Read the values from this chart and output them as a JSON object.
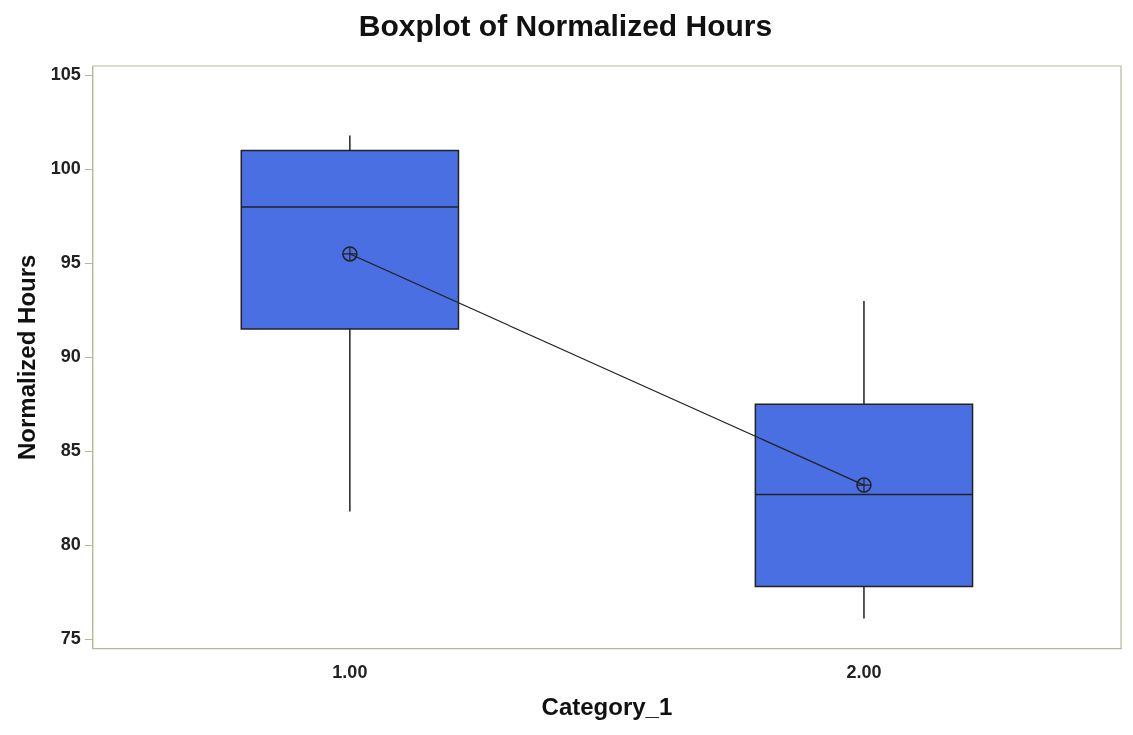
{
  "chart_data": {
    "type": "box",
    "title": "Boxplot of Normalized Hours",
    "xlabel": "Category_1",
    "ylabel": "Normalized Hours",
    "categories": [
      "1.00",
      "2.00"
    ],
    "ylim": [
      74.5,
      105.5
    ],
    "yticks": [
      75,
      80,
      85,
      90,
      95,
      100,
      105
    ],
    "grid": false,
    "legend": false,
    "series": [
      {
        "type": "box",
        "color": "#4a6fe3",
        "boxes": [
          {
            "low": 81.8,
            "q1": 91.5,
            "median": 98.0,
            "q3": 101.0,
            "high": 101.8
          },
          {
            "low": 76.1,
            "q1": 77.8,
            "median": 82.7,
            "q3": 87.5,
            "high": 93.0
          }
        ]
      },
      {
        "type": "line",
        "color": "#222222",
        "marker": "circle",
        "line_style": "solid",
        "values": [
          95.5,
          83.2
        ]
      }
    ]
  }
}
